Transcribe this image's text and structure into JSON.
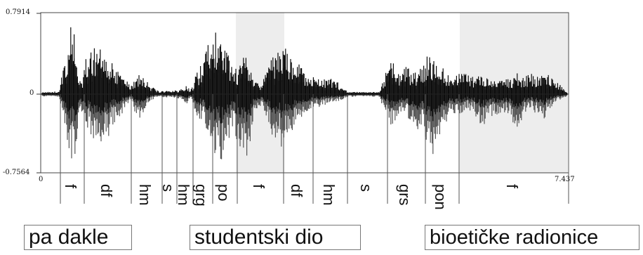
{
  "waveform": {
    "y_max_label": "0.7914",
    "y_zero_label": "0",
    "y_min_label": "-0.7564",
    "x_start_label": "0",
    "x_end_label": "7.437",
    "colors": {
      "plot_border": "#444444",
      "shade": "#ededed",
      "wave_dark": "#0d0d0d",
      "wave_mid": "#555555"
    }
  },
  "segments": [
    {
      "label": "f"
    },
    {
      "label": "df"
    },
    {
      "label": "hm"
    },
    {
      "label": "s"
    },
    {
      "label": "hm"
    },
    {
      "label": "grg"
    },
    {
      "label": "po"
    },
    {
      "label": "f"
    },
    {
      "label": "df"
    },
    {
      "label": "hm"
    },
    {
      "label": "s"
    },
    {
      "label": "grs"
    },
    {
      "label": "pon"
    },
    {
      "label": "f"
    }
  ],
  "phrases": [
    {
      "text": "pa dakle"
    },
    {
      "text": "studentski dio"
    },
    {
      "text": "bioetičke radionice"
    }
  ]
}
